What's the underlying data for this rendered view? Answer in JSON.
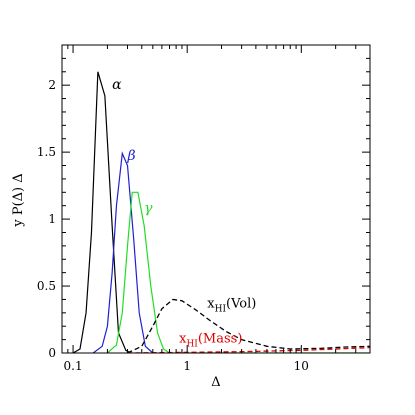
{
  "chart_data": {
    "type": "line",
    "title": "",
    "xlabel": "Δ",
    "ylabel": "y P(Δ)  Δ",
    "xscale": "log",
    "xlim": [
      0.08,
      40
    ],
    "ylim": [
      0,
      2.3
    ],
    "x_ticks": [
      {
        "value": 0.1,
        "label": "0.1"
      },
      {
        "value": 1,
        "label": "1"
      },
      {
        "value": 10,
        "label": "10"
      }
    ],
    "y_ticks": [
      {
        "value": 0,
        "label": "0"
      },
      {
        "value": 0.5,
        "label": "0.5"
      },
      {
        "value": 1,
        "label": "1"
      },
      {
        "value": 1.5,
        "label": "1.5"
      },
      {
        "value": 2,
        "label": "2"
      }
    ],
    "grid": false,
    "series": [
      {
        "name": "α",
        "color": "#000000",
        "dash": "solid",
        "label_at": [
          0.22,
          1.97
        ],
        "points": [
          [
            0.1,
            0
          ],
          [
            0.115,
            0.03
          ],
          [
            0.13,
            0.3
          ],
          [
            0.145,
            0.9
          ],
          [
            0.165,
            2.1
          ],
          [
            0.19,
            1.92
          ],
          [
            0.22,
            0.95
          ],
          [
            0.25,
            0.15
          ],
          [
            0.29,
            0.02
          ],
          [
            0.32,
            0
          ]
        ]
      },
      {
        "name": "β",
        "color": "#2020d0",
        "dash": "solid",
        "label_at": [
          0.3,
          1.44
        ],
        "points": [
          [
            0.15,
            0
          ],
          [
            0.18,
            0.05
          ],
          [
            0.2,
            0.2
          ],
          [
            0.22,
            0.6
          ],
          [
            0.24,
            1.1
          ],
          [
            0.27,
            1.49
          ],
          [
            0.3,
            1.4
          ],
          [
            0.34,
            0.85
          ],
          [
            0.38,
            0.3
          ],
          [
            0.43,
            0.05
          ],
          [
            0.5,
            0
          ]
        ]
      },
      {
        "name": "γ",
        "color": "#22dd22",
        "dash": "solid",
        "label_at": [
          0.42,
          1.05
        ],
        "points": [
          [
            0.2,
            0
          ],
          [
            0.24,
            0.06
          ],
          [
            0.27,
            0.3
          ],
          [
            0.3,
            0.8
          ],
          [
            0.33,
            1.2
          ],
          [
            0.37,
            1.2
          ],
          [
            0.42,
            0.95
          ],
          [
            0.48,
            0.5
          ],
          [
            0.55,
            0.15
          ],
          [
            0.62,
            0.03
          ],
          [
            0.7,
            0
          ],
          [
            40,
            0
          ]
        ]
      },
      {
        "name": "xHI(Vol)",
        "color": "#000000",
        "dash": "dashed",
        "label_at": [
          1.5,
          0.34
        ],
        "points": [
          [
            0.3,
            0
          ],
          [
            0.4,
            0.05
          ],
          [
            0.5,
            0.2
          ],
          [
            0.6,
            0.33
          ],
          [
            0.75,
            0.4
          ],
          [
            0.9,
            0.39
          ],
          [
            1.2,
            0.32
          ],
          [
            1.6,
            0.24
          ],
          [
            2.2,
            0.16
          ],
          [
            3,
            0.1
          ],
          [
            5,
            0.05
          ],
          [
            8,
            0.03
          ],
          [
            15,
            0.035
          ],
          [
            25,
            0.045
          ],
          [
            40,
            0.05
          ]
        ]
      },
      {
        "name": "xHI(Mass)",
        "color": "#dd0000",
        "dash": "dashed",
        "label_at": [
          0.85,
          0.08
        ],
        "points": [
          [
            0.3,
            0
          ],
          [
            1,
            0.005
          ],
          [
            3,
            0.01
          ],
          [
            10,
            0.02
          ],
          [
            20,
            0.03
          ],
          [
            40,
            0.04
          ]
        ]
      }
    ]
  }
}
